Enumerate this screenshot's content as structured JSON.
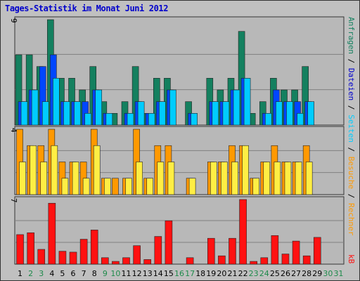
{
  "title": "Tages-Statistik im Monat Juni 2012",
  "colors": {
    "title": "#0000cc",
    "frame": "#c0c0c0",
    "panel": "#b8b8b8",
    "grid": "#808080",
    "weekday_tick": "#000000",
    "weekend_tick": "#1d8a4a",
    "hits": "#14805f",
    "files": "#0046ff",
    "pages": "#00ccff",
    "visits": "#ff9900",
    "sites": "#ffee44",
    "kbytes": "#ff1111"
  },
  "right_legend": {
    "top": [
      {
        "text": "Anfragen",
        "color": "#14805f"
      },
      {
        "text": " / ",
        "color": "#000000"
      },
      {
        "text": "Dateien",
        "color": "#0000cc"
      },
      {
        "text": " / ",
        "color": "#000000"
      },
      {
        "text": "Seiten",
        "color": "#00ccff"
      },
      {
        "text": " / ",
        "color": "#000000"
      },
      {
        "text": "Besuche",
        "color": "#ff9900"
      },
      {
        "text": " / ",
        "color": "#000000"
      },
      {
        "text": "Rechner",
        "color": "#ff9900"
      }
    ],
    "bottom": {
      "text": "kB",
      "color": "#ff1111"
    }
  },
  "chart_data": {
    "type": "bar",
    "title": "Tages-Statistik im Monat Juni 2012",
    "categories": [
      "1",
      "2",
      "3",
      "4",
      "5",
      "6",
      "7",
      "8",
      "9",
      "10",
      "11",
      "12",
      "13",
      "14",
      "15",
      "16",
      "17",
      "18",
      "19",
      "20",
      "21",
      "22",
      "23",
      "24",
      "25",
      "26",
      "27",
      "28",
      "29",
      "30",
      "31"
    ],
    "weekend_days": [
      "2",
      "3",
      "9",
      "10",
      "16",
      "17",
      "23",
      "24",
      "30",
      "31"
    ],
    "panels": [
      {
        "id": "requests",
        "ymax_label": "9",
        "ylim": [
          0,
          9
        ],
        "series": [
          {
            "name": "Anfragen",
            "values": [
              6,
              6,
              5,
              9,
              4,
              4,
              3,
              5,
              2,
              1,
              2,
              5,
              1,
              4,
              4,
              0,
              2,
              0,
              4,
              3,
              4,
              8,
              1,
              2,
              4,
              3,
              3,
              5,
              0,
              0,
              0
            ]
          },
          {
            "name": "Dateien",
            "values": [
              2,
              3,
              5,
              6,
              2,
              2,
              2,
              3,
              1,
              0,
              1,
              2,
              1,
              2,
              3,
              0,
              1,
              0,
              2,
              2,
              3,
              4,
              0,
              1,
              3,
              2,
              2,
              2,
              0,
              0,
              0
            ]
          },
          {
            "name": "Seiten",
            "values": [
              2,
              3,
              2,
              4,
              2,
              2,
              1,
              3,
              1,
              0,
              1,
              2,
              1,
              2,
              3,
              0,
              1,
              0,
              2,
              2,
              3,
              4,
              0,
              1,
              2,
              2,
              1,
              2,
              0,
              0,
              0
            ]
          }
        ]
      },
      {
        "id": "visits",
        "ymax_label": "4",
        "ylim": [
          0,
          4
        ],
        "series": [
          {
            "name": "Besuche",
            "values": [
              4,
              3,
              3,
              4,
              2,
              2,
              2,
              4,
              1,
              1,
              1,
              4,
              1,
              3,
              3,
              0,
              1,
              0,
              2,
              2,
              3,
              3,
              1,
              2,
              3,
              2,
              2,
              3,
              0,
              0,
              0
            ]
          },
          {
            "name": "Rechner",
            "values": [
              2,
              3,
              2,
              3,
              1,
              2,
              1,
              3,
              1,
              0,
              1,
              2,
              1,
              2,
              2,
              0,
              1,
              0,
              2,
              2,
              2,
              3,
              1,
              2,
              2,
              2,
              2,
              2,
              0,
              0,
              0
            ]
          }
        ]
      },
      {
        "id": "kbytes",
        "ymax_label": "7",
        "ylim": [
          0,
          7
        ],
        "series": [
          {
            "name": "kB",
            "values": [
              3.2,
              3.4,
              1.6,
              6.6,
              1.4,
              1.3,
              2.7,
              3.7,
              0.7,
              0.3,
              0.7,
              2.0,
              0.5,
              3.0,
              4.7,
              0,
              0.7,
              0,
              2.8,
              0.9,
              2.8,
              7.0,
              0.3,
              0.7,
              3.1,
              1.1,
              2.5,
              0.9,
              2.9,
              0,
              0
            ]
          }
        ]
      }
    ]
  }
}
